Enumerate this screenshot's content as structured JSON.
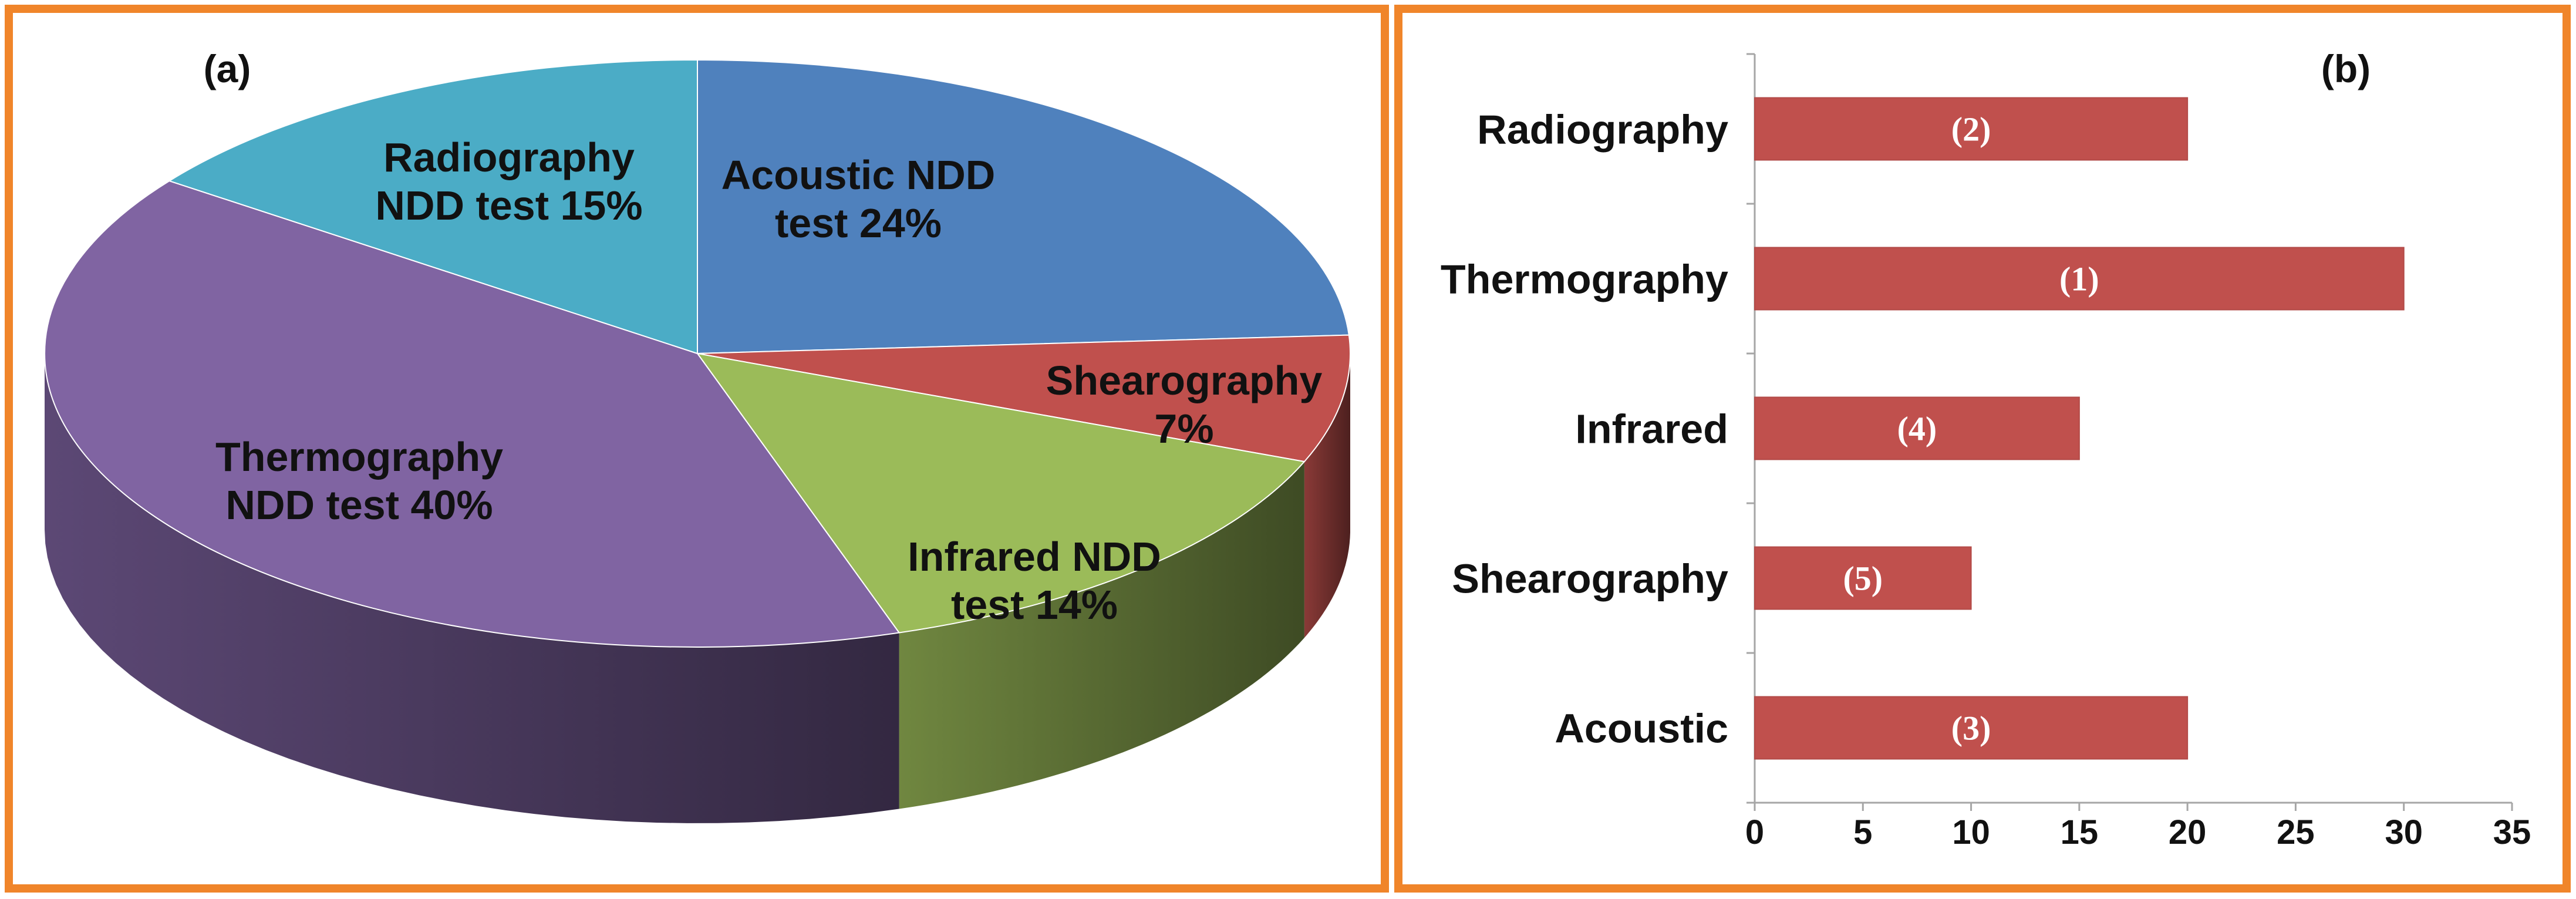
{
  "chart_data": [
    {
      "type": "pie",
      "panel_label": "(a)",
      "slices": [
        {
          "name": "Acoustic NDD test",
          "value": 24,
          "label_lines": [
            "Acoustic NDD",
            "test 24%"
          ],
          "color": "#4F81BD"
        },
        {
          "name": "Shearography",
          "value": 7,
          "label_lines": [
            "Shearography",
            "7%"
          ],
          "color": "#C0504D"
        },
        {
          "name": "Infrared NDD test",
          "value": 14,
          "label_lines": [
            "Infrared NDD",
            "test 14%"
          ],
          "color": "#9BBB59"
        },
        {
          "name": "Thermography NDD test",
          "value": 40,
          "label_lines": [
            "Thermography",
            "NDD test 40%"
          ],
          "color": "#8064A2"
        },
        {
          "name": "Radiography NDD test",
          "value": 15,
          "label_lines": [
            "Radiography",
            "NDD test 15%"
          ],
          "color": "#4BACC6"
        }
      ]
    },
    {
      "type": "bar",
      "orientation": "horizontal",
      "panel_label": "(b)",
      "categories": [
        "Radiography",
        "Thermography",
        "Infrared",
        "Shearography",
        "Acoustic"
      ],
      "values": [
        20,
        30,
        15,
        10,
        20
      ],
      "bar_labels": [
        "(2)",
        "(1)",
        "(4)",
        "(5)",
        "(3)"
      ],
      "xlim": [
        0,
        35
      ],
      "xticks": [
        0,
        5,
        10,
        15,
        20,
        25,
        30,
        35
      ],
      "bar_color": "#C0504D",
      "grid": false
    }
  ]
}
